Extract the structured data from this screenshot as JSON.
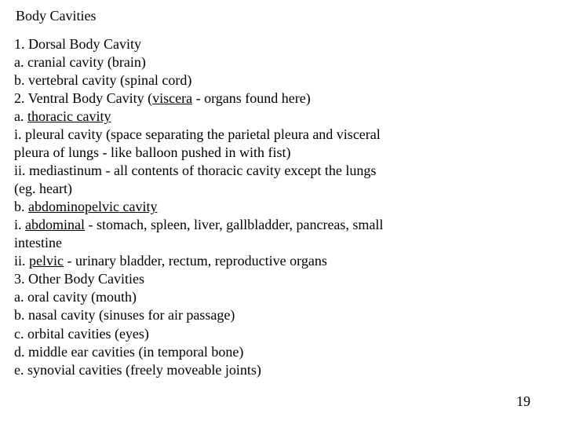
{
  "title": "Body Cavities",
  "page_number": "19",
  "lines": [
    {
      "segments": [
        {
          "t": "1. Dorsal Body Cavity"
        }
      ]
    },
    {
      "segments": [
        {
          "t": "a. cranial cavity (brain)"
        }
      ]
    },
    {
      "segments": [
        {
          "t": "b. vertebral cavity (spinal cord)"
        }
      ]
    },
    {
      "segments": [
        {
          "t": "2. Ventral Body Cavity ("
        },
        {
          "t": "viscera",
          "u": true
        },
        {
          "t": " - organs found here)"
        }
      ]
    },
    {
      "segments": [
        {
          "t": "a. "
        },
        {
          "t": "thoracic cavity",
          "u": true
        }
      ]
    },
    {
      "segments": [
        {
          "t": "i. pleural cavity (space separating the parietal pleura and visceral"
        }
      ]
    },
    {
      "segments": [
        {
          "t": "pleura   of lungs - like balloon pushed in with fist)"
        }
      ]
    },
    {
      "segments": [
        {
          "t": "ii. mediastinum - all contents of thoracic cavity except the lungs"
        }
      ]
    },
    {
      "segments": [
        {
          "t": "(eg. heart)"
        }
      ]
    },
    {
      "segments": [
        {
          "t": "b. "
        },
        {
          "t": "abdominopelvic cavity",
          "u": true
        }
      ]
    },
    {
      "segments": [
        {
          "t": "i. "
        },
        {
          "t": "abdominal",
          "u": true
        },
        {
          "t": " - stomach, spleen, liver, gallbladder, pancreas, small"
        }
      ]
    },
    {
      "segments": [
        {
          "t": "intestine"
        }
      ]
    },
    {
      "segments": [
        {
          "t": "ii. "
        },
        {
          "t": "pelvic",
          "u": true
        },
        {
          "t": " - urinary bladder, rectum, reproductive organs"
        }
      ]
    },
    {
      "segments": [
        {
          "t": "3. Other Body Cavities"
        }
      ]
    },
    {
      "segments": [
        {
          "t": "a. oral cavity (mouth)"
        }
      ]
    },
    {
      "segments": [
        {
          "t": "b. nasal cavity (sinuses for air passage)"
        }
      ]
    },
    {
      "segments": [
        {
          "t": "c. orbital cavities (eyes)"
        }
      ]
    },
    {
      "segments": [
        {
          "t": "d. middle ear cavities (in temporal bone)"
        }
      ]
    },
    {
      "segments": [
        {
          "t": "e. synovial cavities (freely moveable joints)"
        }
      ]
    }
  ]
}
